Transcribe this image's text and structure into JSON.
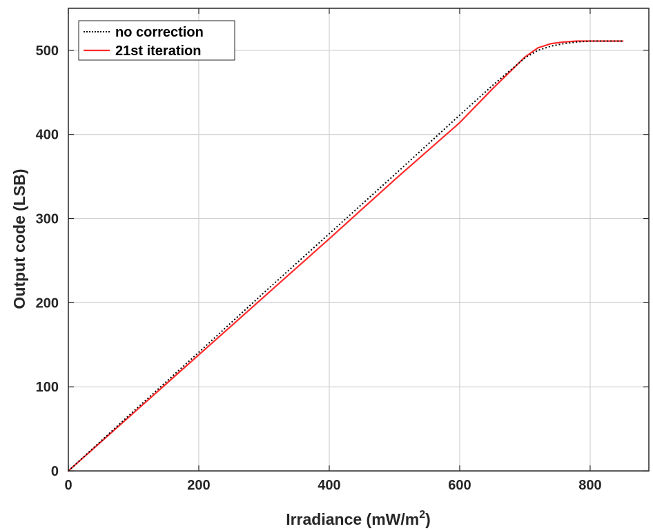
{
  "chart_data": {
    "type": "line",
    "xlabel": "Irradiance (mW/m",
    "xlabel_superscript": "2",
    "xlabel_suffix": ")",
    "ylabel": "Output code (LSB)",
    "xlim": [
      0,
      890
    ],
    "ylim": [
      0,
      550
    ],
    "xticks": [
      0,
      200,
      400,
      600,
      800
    ],
    "yticks": [
      0,
      100,
      200,
      300,
      400,
      500
    ],
    "xtick_labels": [
      "0",
      "200",
      "400",
      "600",
      "800"
    ],
    "ytick_labels": [
      "0",
      "100",
      "200",
      "300",
      "400",
      "500"
    ],
    "grid": true,
    "legend_position": "top-left",
    "series": [
      {
        "name": "no correction",
        "color": "#000000",
        "style": "dotted",
        "x": [
          0,
          100,
          200,
          300,
          400,
          500,
          600,
          650,
          700,
          720,
          740,
          760,
          780,
          800,
          820,
          850
        ],
        "y": [
          0,
          71,
          141,
          212,
          282,
          352,
          423,
          458,
          491,
          500,
          505,
          508,
          510,
          511,
          511,
          511
        ]
      },
      {
        "name": "21st iteration",
        "color": "#ff2a2a",
        "style": "solid",
        "x": [
          0,
          100,
          200,
          300,
          400,
          500,
          600,
          650,
          700,
          720,
          740,
          760,
          780,
          800,
          820,
          850
        ],
        "y": [
          0,
          69,
          138,
          207,
          276,
          346,
          414,
          454,
          492,
          503,
          508,
          510,
          511,
          511,
          511,
          511
        ]
      }
    ]
  }
}
